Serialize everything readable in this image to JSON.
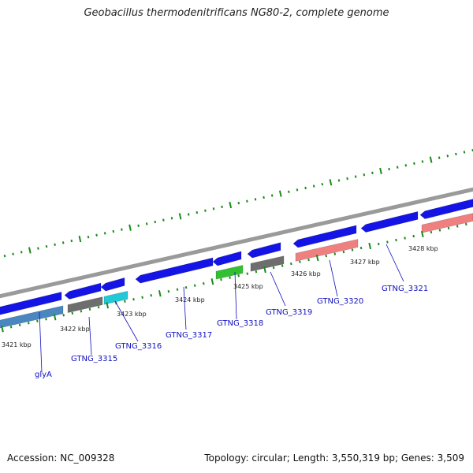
{
  "title": "Geobacillus thermodenitrificans NG80-2, complete genome",
  "footer": {
    "accession": "Accession: NC_009328",
    "topology": "Topology: circular; Length: 3,550,319 bp; Genes: 3,509"
  },
  "scale_ticks": [
    "3421 kbp",
    "3422 kbp",
    "3423 kbp",
    "3424 kbp",
    "3425 kbp",
    "3426 kbp",
    "3427 kbp",
    "3428 kbp"
  ],
  "gene_labels": [
    "glyA",
    "GTNG_3315",
    "GTNG_3316",
    "GTNG_3317",
    "GTNG_3318",
    "GTNG_3319",
    "GTNG_3320",
    "GTNG_3321"
  ],
  "colors": {
    "cds_forward": "#1414e6",
    "gray_feature": "#6e6e6e",
    "cyan_feature": "#20c8d8",
    "green_feature": "#30c030",
    "pink_feature": "#f08080",
    "steel_feature": "#4a86c0",
    "backbone": "#8a8a8a",
    "tick_green": "#1a8a1a",
    "label_blue": "#1010c0"
  }
}
